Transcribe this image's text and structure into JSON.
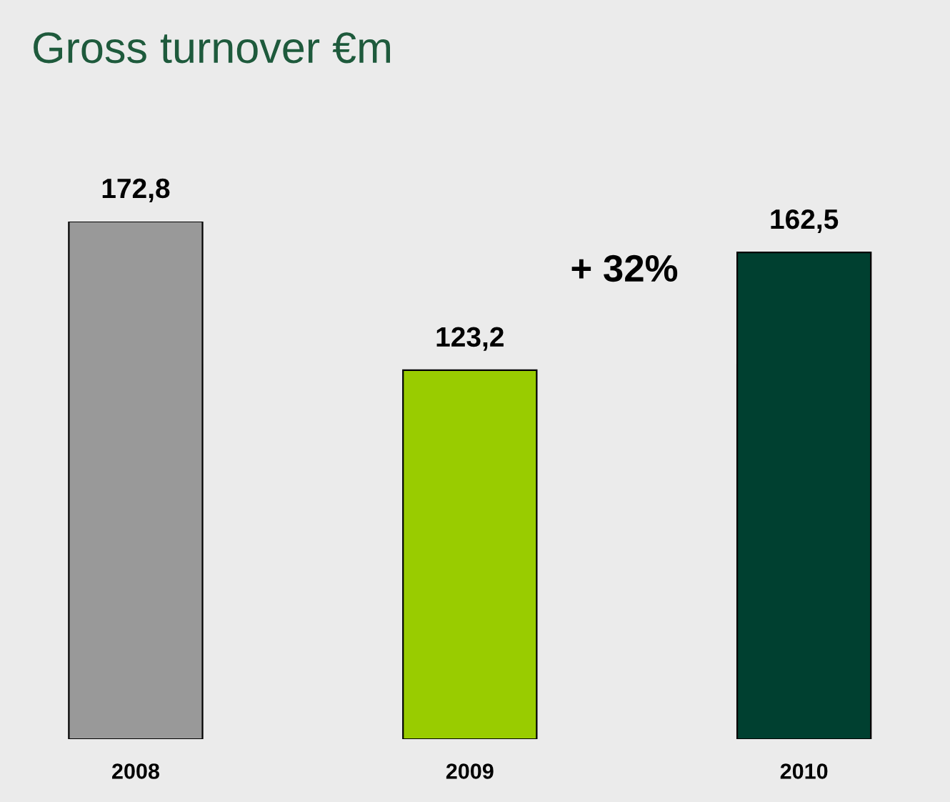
{
  "chart_data": {
    "type": "bar",
    "title": "Gross turnover €m",
    "categories": [
      "2008",
      "2009",
      "2010"
    ],
    "values": [
      172.8,
      123.2,
      162.5
    ],
    "colors": [
      "#999999",
      "#99cc00",
      "#004030"
    ],
    "value_labels": [
      "172,8",
      "123,2",
      "162,5"
    ],
    "annotations": [
      "+ 32%"
    ]
  }
}
